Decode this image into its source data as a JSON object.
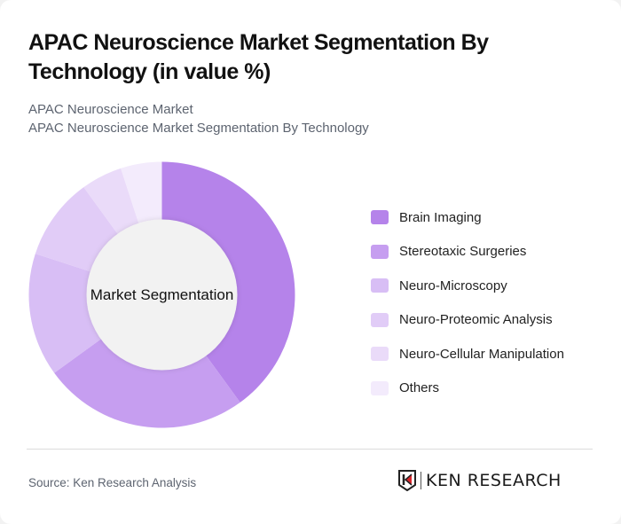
{
  "header": {
    "title": "APAC Neuroscience Market Segmentation By Technology (in value %)",
    "subtitle_line1": "APAC Neuroscience Market",
    "subtitle_line2": "APAC Neuroscience Market Segmentation By Technology"
  },
  "chart": {
    "center_label": "Market Segmentation"
  },
  "footer": {
    "source": "Source: Ken Research Analysis",
    "logo_text": "KEN RESEARCH",
    "logo_icon": "ken-research-k-shield-icon"
  },
  "chart_data": {
    "type": "pie",
    "variant": "donut",
    "title": "APAC Neuroscience Market Segmentation By Technology (in value %)",
    "center_label": "Market Segmentation",
    "categories": [
      "Brain Imaging",
      "Stereotaxic Surgeries",
      "Neuro-Microscopy",
      "Neuro-Proteomic Analysis",
      "Neuro-Cellular Manipulation",
      "Others"
    ],
    "values": [
      40,
      25,
      15,
      10,
      5,
      5
    ],
    "colors": [
      "#b583ea",
      "#c69ef0",
      "#d8bef5",
      "#e1ccf7",
      "#eadbf9",
      "#f3ebfc"
    ],
    "legend_position": "right",
    "unit": "%"
  }
}
